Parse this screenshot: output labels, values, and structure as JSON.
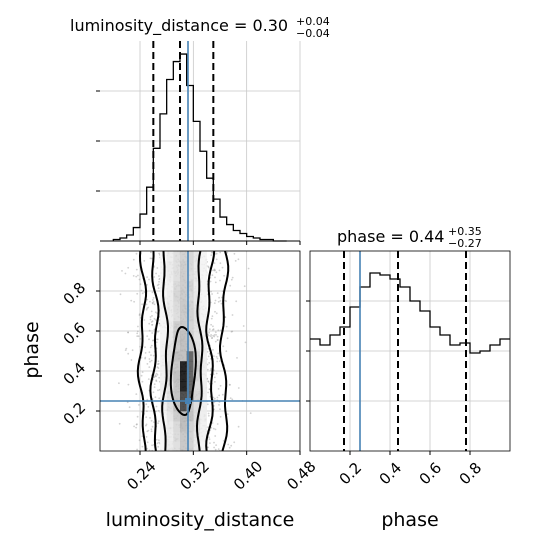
{
  "chart_data": {
    "type": "corner",
    "parameters": [
      {
        "name": "luminosity_distance",
        "title_text": "luminosity_distance = 0.30",
        "title_plus": "+0.04",
        "title_minus": "−0.04",
        "xlim": [
          0.18,
          0.48
        ],
        "xticks": [
          0.24,
          0.32,
          0.4,
          0.48
        ],
        "xtick_labels": [
          "0.24",
          "0.32",
          "0.40",
          "0.48"
        ],
        "axis_label": "luminosity_distance",
        "quantiles": [
          0.26,
          0.3,
          0.35
        ],
        "truth": 0.312,
        "hist_bin_edges": [
          0.2,
          0.21,
          0.22,
          0.23,
          0.24,
          0.25,
          0.26,
          0.27,
          0.28,
          0.29,
          0.3,
          0.31,
          0.32,
          0.33,
          0.34,
          0.35,
          0.36,
          0.37,
          0.38,
          0.39,
          0.4,
          0.41,
          0.42,
          0.43,
          0.44,
          0.45,
          0.46
        ],
        "hist_counts": [
          1,
          2,
          4,
          9,
          18,
          36,
          62,
          85,
          108,
          120,
          125,
          104,
          80,
          60,
          42,
          28,
          16,
          11,
          7,
          5,
          3,
          2,
          1,
          1,
          0,
          0
        ]
      },
      {
        "name": "phase",
        "title_text": "phase = 0.44",
        "title_plus": "+0.35",
        "title_minus": "−0.27",
        "xlim": [
          0.0,
          1.0
        ],
        "xticks": [
          0.2,
          0.4,
          0.6,
          0.8
        ],
        "xtick_labels": [
          "0.2",
          "0.4",
          "0.6",
          "0.8"
        ],
        "axis_label": "phase",
        "quantiles": [
          0.17,
          0.44,
          0.78
        ],
        "truth": 0.25,
        "hist_bin_edges": [
          0.0,
          0.05,
          0.1,
          0.15,
          0.2,
          0.25,
          0.3,
          0.35,
          0.4,
          0.45,
          0.5,
          0.55,
          0.6,
          0.65,
          0.7,
          0.75,
          0.8,
          0.85,
          0.9,
          0.95,
          1.0
        ],
        "hist_counts": [
          0.56,
          0.53,
          0.58,
          0.62,
          0.72,
          0.82,
          0.89,
          0.88,
          0.86,
          0.82,
          0.75,
          0.7,
          0.62,
          0.58,
          0.53,
          0.54,
          0.49,
          0.5,
          0.53,
          0.56
        ]
      }
    ],
    "joint": {
      "x": "luminosity_distance",
      "y": "phase",
      "ylim": [
        0.0,
        1.0
      ],
      "yticks": [
        0.2,
        0.4,
        0.6,
        0.8
      ],
      "ytick_labels": [
        "0.2",
        "0.4",
        "0.6",
        "0.8"
      ],
      "ylabel": "phase",
      "truth_point": [
        0.312,
        0.25
      ],
      "mean_x": 0.305,
      "std_x": 0.032
    },
    "grid": true,
    "colors": {
      "truth": "#4682b4",
      "hist": "#000000",
      "grid": "#c8c8c8",
      "points": "#9a9a9a"
    }
  }
}
